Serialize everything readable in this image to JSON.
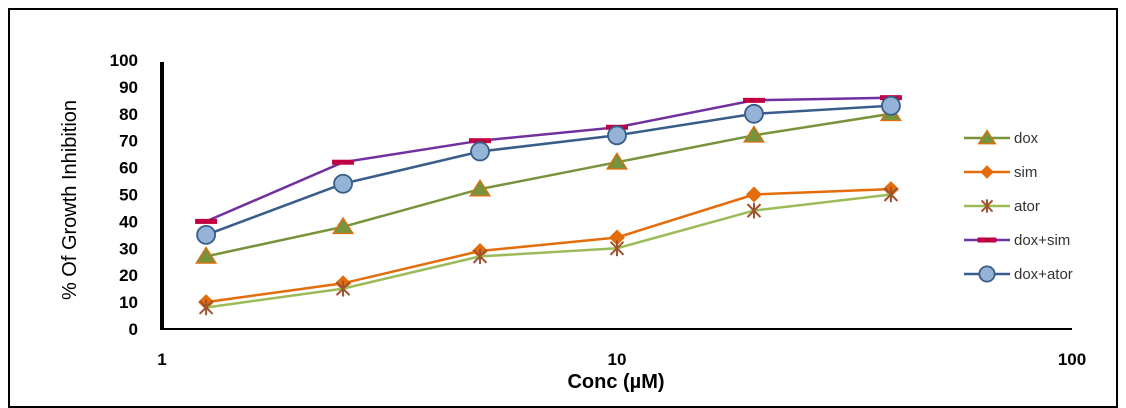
{
  "chart_data": {
    "type": "line",
    "xlabel": "Conc (µM)",
    "ylabel": "%  Of Growth Inhibition",
    "xscale": "log",
    "xlim": [
      1,
      100
    ],
    "ylim": [
      0,
      100
    ],
    "x_ticks": [
      "1",
      "10",
      "100"
    ],
    "y_ticks": [
      "0",
      "10",
      "20",
      "30",
      "40",
      "50",
      "60",
      "70",
      "80",
      "90",
      "100"
    ],
    "x": [
      1.25,
      2.5,
      5,
      10,
      20,
      40
    ],
    "grid": false,
    "legend_position": "right",
    "series": [
      {
        "name": "dox",
        "color": "#77933c",
        "marker": "triangle",
        "values": [
          27,
          38,
          52,
          62,
          72,
          80
        ]
      },
      {
        "name": "sim",
        "color": "#e46c0a",
        "marker": "diamond",
        "values": [
          10,
          17,
          29,
          34,
          50,
          52
        ]
      },
      {
        "name": "ator",
        "color": "#9bbb59",
        "marker": "star",
        "values": [
          8,
          15,
          27,
          30,
          44,
          50
        ]
      },
      {
        "name": "dox+sim",
        "color": "#7030a0",
        "marker": "dash",
        "values": [
          40,
          62,
          70,
          75,
          85,
          86
        ]
      },
      {
        "name": "dox+ator",
        "color": "#385d8a",
        "marker": "circle",
        "values": [
          35,
          54,
          66,
          72,
          80,
          83
        ]
      }
    ]
  }
}
